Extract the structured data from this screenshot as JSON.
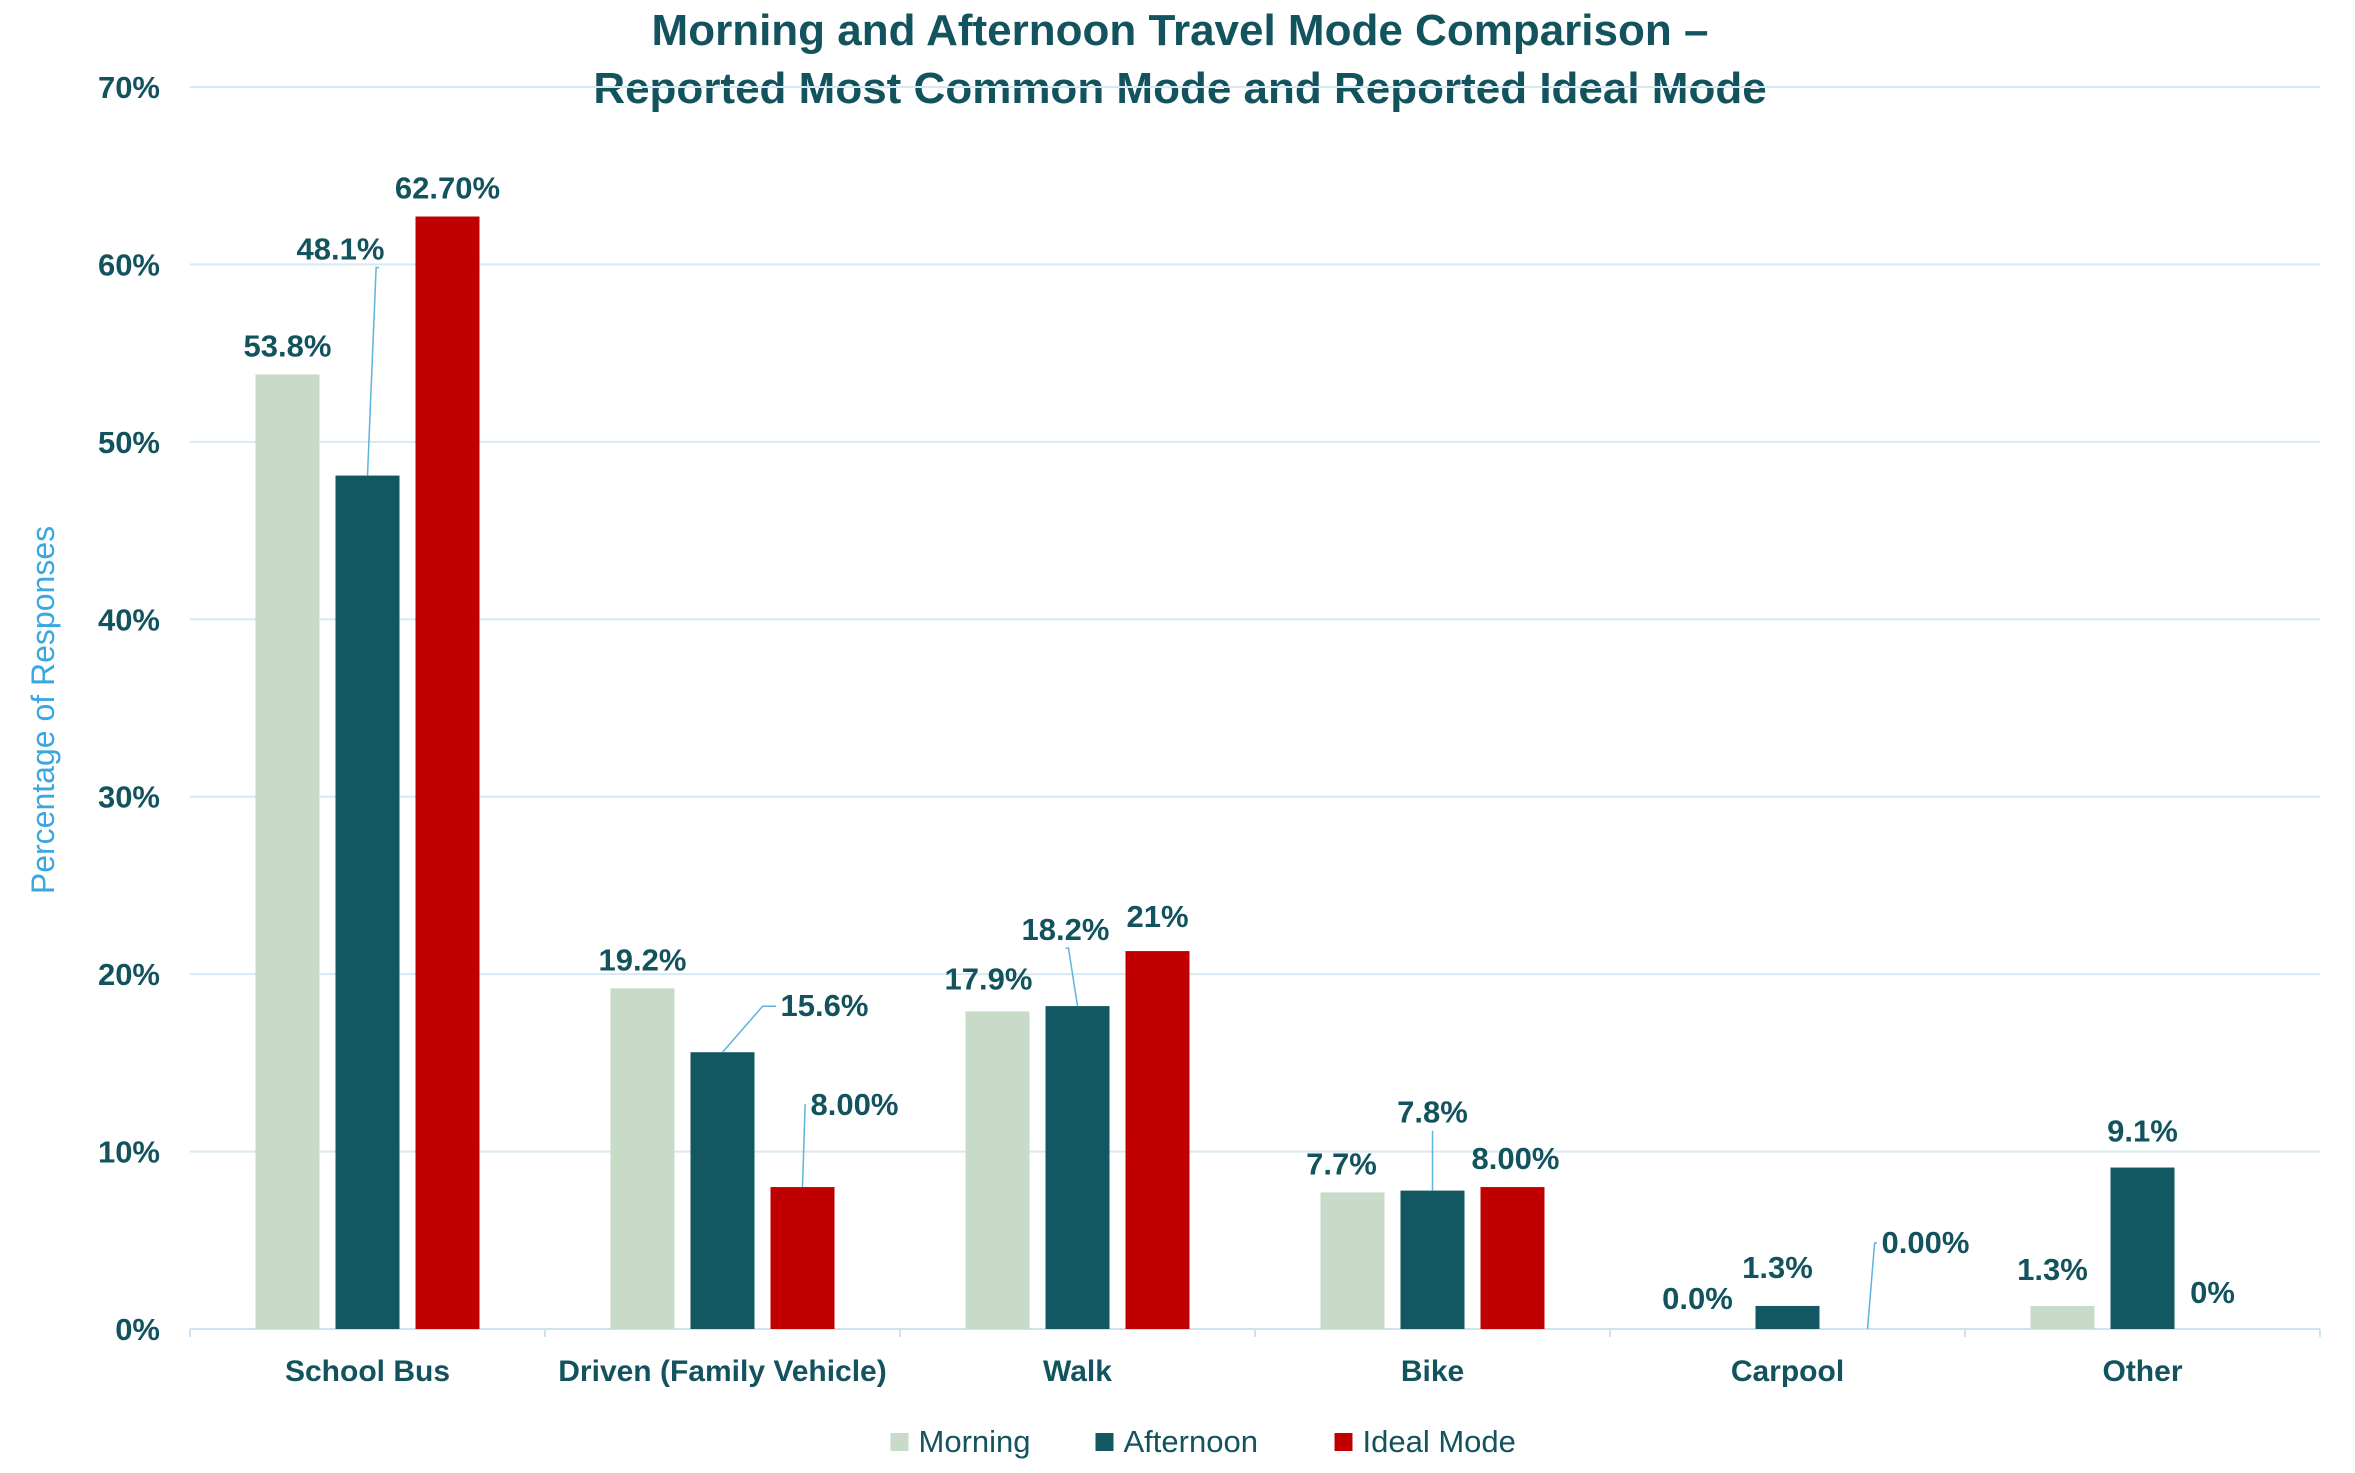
{
  "chart_data": {
    "type": "bar",
    "title_lines": [
      "Morning and Afternoon Travel Mode Comparison –",
      "Reported Most Common Mode and Reported Ideal Mode"
    ],
    "ylabel": "Percentage of Responses",
    "xlabel": "",
    "ylim": [
      0,
      70
    ],
    "yticks": [
      {
        "value": 0,
        "label": "0%"
      },
      {
        "value": 10,
        "label": "10%"
      },
      {
        "value": 20,
        "label": "20%"
      },
      {
        "value": 30,
        "label": "30%"
      },
      {
        "value": 40,
        "label": "40%"
      },
      {
        "value": 50,
        "label": "50%"
      },
      {
        "value": 60,
        "label": "60%"
      },
      {
        "value": 70,
        "label": "70%"
      }
    ],
    "grid": true,
    "legend_position": "bottom",
    "categories": [
      "School Bus",
      "Driven (Family Vehicle)",
      "Walk",
      "Bike",
      "Carpool",
      "Other"
    ],
    "series": [
      {
        "name": "Morning",
        "color": "#c8dbc9",
        "values": [
          53.8,
          19.2,
          17.9,
          7.7,
          0.0,
          1.3
        ],
        "labels": [
          "53.8%",
          "19.2%",
          "17.9%",
          "7.7%",
          "0.0%",
          "1.3%"
        ]
      },
      {
        "name": "Afternoon",
        "color": "#125761",
        "values": [
          48.1,
          15.6,
          18.2,
          7.8,
          1.3,
          9.1
        ],
        "labels": [
          "48.1%",
          "15.6%",
          "18.2%",
          "7.8%",
          "1.3%",
          "9.1%"
        ]
      },
      {
        "name": "Ideal Mode",
        "color": "#c00000",
        "values": [
          62.7,
          8.0,
          21.3,
          8.0,
          0.0,
          0.0
        ],
        "labels": [
          "62.70%",
          "8.00%",
          "21%",
          "8.00%",
          "0.00%",
          "0%"
        ]
      }
    ]
  }
}
